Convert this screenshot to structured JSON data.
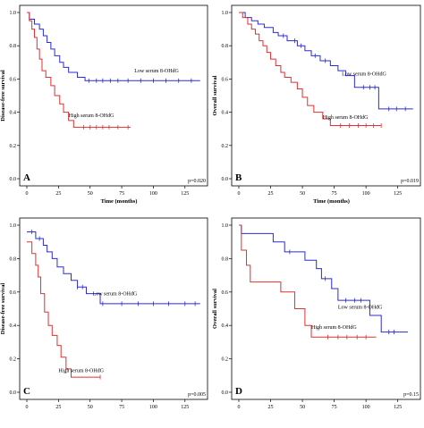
{
  "chart_data": [
    {
      "type": "line",
      "panel_label": "A",
      "xlabel": "Time (months)",
      "ylabel": "Disease-free survival",
      "p_value": "p=0.020",
      "xlim": [
        0,
        140
      ],
      "ylim": [
        0,
        1.0
      ],
      "x_ticks": [
        "0",
        "25",
        "50",
        "75",
        "100",
        "125"
      ],
      "y_ticks": [
        "0.0",
        "0.2",
        "0.4",
        "0.6",
        "0.8",
        "1.0"
      ],
      "series": [
        {
          "name": "Low serum 8-OHdG",
          "color": "#2b2bd6",
          "steps": [
            [
              0,
              1.0
            ],
            [
              2,
              0.96
            ],
            [
              6,
              0.93
            ],
            [
              10,
              0.9
            ],
            [
              13,
              0.86
            ],
            [
              16,
              0.82
            ],
            [
              19,
              0.78
            ],
            [
              22,
              0.74
            ],
            [
              26,
              0.7
            ],
            [
              29,
              0.67
            ],
            [
              33,
              0.64
            ],
            [
              40,
              0.61
            ],
            [
              46,
              0.59
            ],
            [
              137,
              0.59
            ]
          ],
          "censor_x": [
            49,
            55,
            60,
            66,
            72,
            80,
            90,
            100,
            110,
            120,
            130
          ]
        },
        {
          "name": "High serum 8-OHdG",
          "color": "#e03030",
          "steps": [
            [
              0,
              1.0
            ],
            [
              2,
              0.95
            ],
            [
              4,
              0.9
            ],
            [
              6,
              0.85
            ],
            [
              8,
              0.78
            ],
            [
              10,
              0.72
            ],
            [
              12,
              0.65
            ],
            [
              15,
              0.61
            ],
            [
              19,
              0.56
            ],
            [
              22,
              0.5
            ],
            [
              26,
              0.45
            ],
            [
              29,
              0.4
            ],
            [
              33,
              0.35
            ],
            [
              37,
              0.31
            ],
            [
              82,
              0.31
            ]
          ],
          "censor_x": [
            45,
            50,
            55,
            60,
            65,
            72,
            80
          ]
        }
      ]
    },
    {
      "type": "line",
      "panel_label": "B",
      "xlabel": "Time (months)",
      "ylabel": "Overall survival",
      "p_value": "p=0.019",
      "xlim": [
        0,
        140
      ],
      "ylim": [
        0,
        1.0
      ],
      "x_ticks": [
        "0",
        "25",
        "50",
        "75",
        "100",
        "125"
      ],
      "y_ticks": [
        "0.0",
        "0.2",
        "0.4",
        "0.6",
        "0.8",
        "1.0"
      ],
      "series": [
        {
          "name": "Low serum 8-OHdG",
          "color": "#2b2bd6",
          "steps": [
            [
              0,
              1.0
            ],
            [
              5,
              0.97
            ],
            [
              10,
              0.95
            ],
            [
              15,
              0.93
            ],
            [
              20,
              0.91
            ],
            [
              27,
              0.88
            ],
            [
              31,
              0.86
            ],
            [
              38,
              0.83
            ],
            [
              46,
              0.8
            ],
            [
              52,
              0.77
            ],
            [
              57,
              0.74
            ],
            [
              64,
              0.71
            ],
            [
              72,
              0.68
            ],
            [
              78,
              0.65
            ],
            [
              84,
              0.62
            ],
            [
              91,
              0.55
            ],
            [
              110,
              0.42
            ],
            [
              137,
              0.42
            ]
          ],
          "censor_x": [
            35,
            44,
            49,
            60,
            68,
            98,
            103,
            107,
            118,
            124,
            131
          ]
        },
        {
          "name": "High serum 8-OHdG",
          "color": "#e03030",
          "steps": [
            [
              0,
              1.0
            ],
            [
              3,
              0.97
            ],
            [
              7,
              0.93
            ],
            [
              10,
              0.9
            ],
            [
              13,
              0.87
            ],
            [
              16,
              0.83
            ],
            [
              19,
              0.8
            ],
            [
              22,
              0.76
            ],
            [
              25,
              0.72
            ],
            [
              29,
              0.68
            ],
            [
              33,
              0.64
            ],
            [
              36,
              0.61
            ],
            [
              41,
              0.58
            ],
            [
              46,
              0.54
            ],
            [
              50,
              0.49
            ],
            [
              54,
              0.44
            ],
            [
              59,
              0.4
            ],
            [
              66,
              0.36
            ],
            [
              72,
              0.32
            ],
            [
              112,
              0.32
            ]
          ],
          "censor_x": [
            80,
            87,
            94,
            100,
            106,
            112
          ]
        }
      ]
    },
    {
      "type": "line",
      "panel_label": "C",
      "xlabel": "",
      "ylabel": "Disease-free survival",
      "p_value": "p=0.005",
      "xlim": [
        0,
        140
      ],
      "ylim": [
        0,
        1.0
      ],
      "x_ticks": [
        "0",
        "25",
        "50",
        "75",
        "100",
        "125"
      ],
      "y_ticks": [
        "0.0",
        "0.2",
        "0.4",
        "0.6",
        "0.8",
        "1.0"
      ],
      "series": [
        {
          "name": "Low serum 8-OHdG",
          "color": "#2b2bd6",
          "steps": [
            [
              0,
              0.96
            ],
            [
              7,
              0.92
            ],
            [
              13,
              0.88
            ],
            [
              16,
              0.84
            ],
            [
              20,
              0.8
            ],
            [
              24,
              0.75
            ],
            [
              29,
              0.71
            ],
            [
              35,
              0.67
            ],
            [
              40,
              0.63
            ],
            [
              47,
              0.59
            ],
            [
              58,
              0.53
            ],
            [
              137,
              0.53
            ]
          ],
          "censor_x": [
            4,
            10,
            40,
            44,
            60,
            75,
            88,
            100,
            112,
            125,
            133
          ]
        },
        {
          "name": "High serum 8-OHdG",
          "color": "#e03030",
          "steps": [
            [
              0,
              0.9
            ],
            [
              4,
              0.83
            ],
            [
              7,
              0.76
            ],
            [
              9,
              0.69
            ],
            [
              11,
              0.59
            ],
            [
              14,
              0.48
            ],
            [
              17,
              0.4
            ],
            [
              20,
              0.34
            ],
            [
              24,
              0.28
            ],
            [
              27,
              0.21
            ],
            [
              31,
              0.14
            ],
            [
              35,
              0.09
            ],
            [
              58,
              0.09
            ]
          ],
          "censor_x": [
            58
          ]
        }
      ]
    },
    {
      "type": "line",
      "panel_label": "D",
      "xlabel": "",
      "ylabel": "Overall survival",
      "p_value": "p=0.15",
      "xlim": [
        0,
        140
      ],
      "ylim": [
        0,
        1.0
      ],
      "x_ticks": [
        "0",
        "25",
        "50",
        "75",
        "100",
        "125"
      ],
      "y_ticks": [
        "0.0",
        "0.2",
        "0.4",
        "0.6",
        "0.8",
        "1.0"
      ],
      "series": [
        {
          "name": "Low serum 8-OHdG",
          "color": "#2b2bd6",
          "steps": [
            [
              0,
              1.0
            ],
            [
              2,
              0.95
            ],
            [
              27,
              0.9
            ],
            [
              36,
              0.84
            ],
            [
              52,
              0.79
            ],
            [
              61,
              0.74
            ],
            [
              65,
              0.68
            ],
            [
              73,
              0.62
            ],
            [
              78,
              0.55
            ],
            [
              103,
              0.46
            ],
            [
              112,
              0.36
            ],
            [
              133,
              0.36
            ]
          ],
          "censor_x": [
            40,
            68,
            84,
            91,
            96,
            118,
            122
          ]
        },
        {
          "name": "High serum 8-OHdG",
          "color": "#e03030",
          "steps": [
            [
              0,
              1.0
            ],
            [
              2,
              0.85
            ],
            [
              6,
              0.76
            ],
            [
              9,
              0.66
            ],
            [
              33,
              0.6
            ],
            [
              44,
              0.5
            ],
            [
              52,
              0.4
            ],
            [
              57,
              0.33
            ],
            [
              108,
              0.33
            ]
          ],
          "censor_x": [
            70,
            78,
            85,
            93,
            100
          ]
        }
      ]
    }
  ]
}
